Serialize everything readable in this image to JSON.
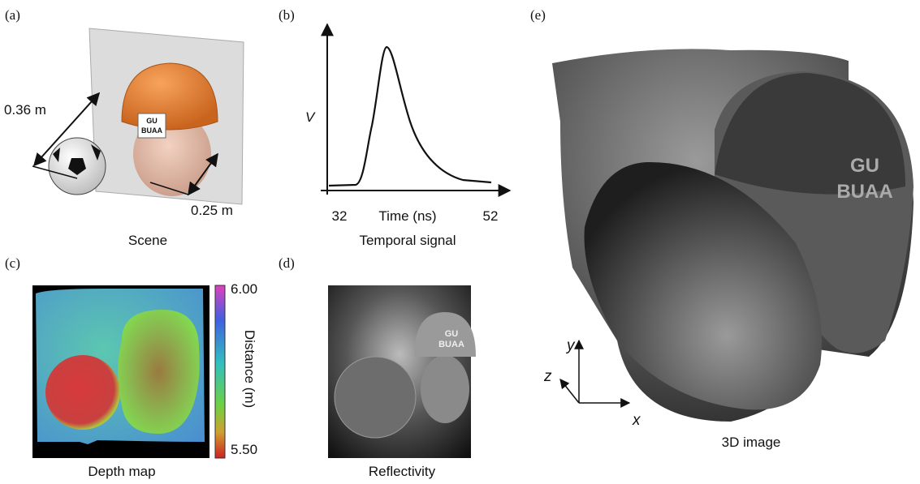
{
  "panels": {
    "a": {
      "label": "(a)",
      "distance_1": "0.36 m",
      "distance_2": "0.25 m",
      "helmet_line_1": "GU",
      "helmet_line_2": "BUAA",
      "caption": "Scene"
    },
    "b": {
      "label": "(b)",
      "y_axis": "V",
      "x_tick_left": "32",
      "x_axis": "Time (ns)",
      "x_tick_right": "52",
      "caption": "Temporal signal"
    },
    "c": {
      "label": "(c)",
      "colorbar_top": "6.00",
      "colorbar_bottom": "5.50",
      "colorbar_title": "Distance (m)",
      "caption": "Depth map"
    },
    "d": {
      "label": "(d)",
      "helmet_line_1": "GU",
      "helmet_line_2": "BUAA",
      "caption": "Reflectivity"
    },
    "e": {
      "label": "(e)",
      "helmet_line_1": "GU",
      "helmet_line_2": "BUAA",
      "axis_y": "y",
      "axis_z": "z",
      "axis_x": "x",
      "caption": "3D image"
    }
  }
}
